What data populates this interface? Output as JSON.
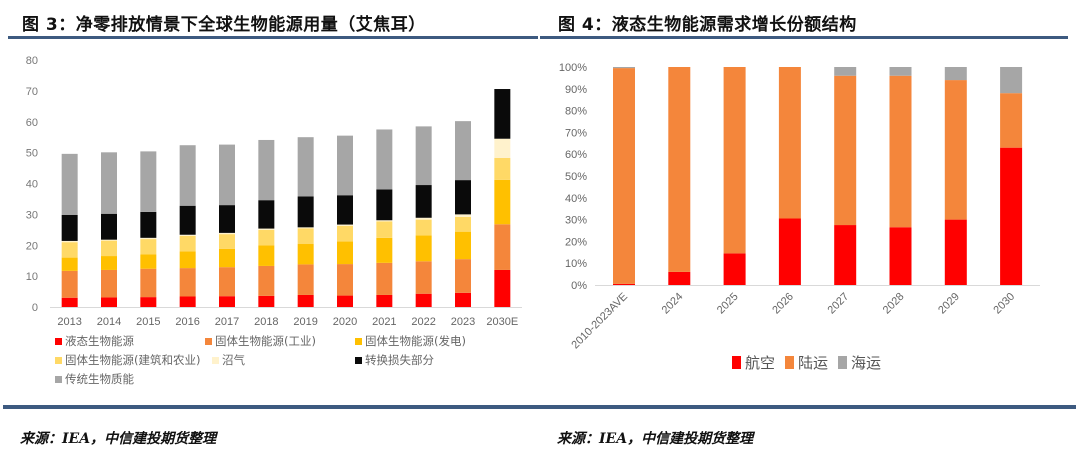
{
  "figure3": {
    "title": "图 3：净零排放情景下全球生物能源用量（艾焦耳）",
    "source": "来源：IEA，中信建投期货整理"
  },
  "figure4": {
    "title": "图 4：液态生物能源需求增长份额结构",
    "source": "来源：IEA，中信建投期货整理"
  },
  "chart_data": [
    {
      "type": "bar",
      "stacked": true,
      "title": "净零排放情景下全球生物能源用量（艾焦耳）",
      "xlabel": "",
      "ylabel": "艾焦耳",
      "ylim": [
        0,
        80
      ],
      "yticks": [
        0,
        10,
        20,
        30,
        40,
        50,
        60,
        70,
        80
      ],
      "grid": false,
      "legend_position": "bottom",
      "categories": [
        "2013",
        "2014",
        "2015",
        "2016",
        "2017",
        "2018",
        "2019",
        "2020",
        "2021",
        "2022",
        "2023",
        "2030E"
      ],
      "series": [
        {
          "name": "液态生物能源",
          "color": "#ff0000",
          "values": [
            3.0,
            3.1,
            3.2,
            3.4,
            3.5,
            3.6,
            3.9,
            3.7,
            3.9,
            4.3,
            4.6,
            12.0
          ]
        },
        {
          "name": "固体生物能源(工业)",
          "color": "#f4863b",
          "values": [
            8.7,
            8.9,
            9.2,
            9.2,
            9.4,
            9.7,
            9.9,
            10.2,
            10.4,
            10.5,
            10.9,
            14.8
          ]
        },
        {
          "name": "固体生物能源(发电)",
          "color": "#ffc000",
          "values": [
            4.3,
            4.5,
            4.6,
            5.4,
            5.9,
            6.7,
            6.6,
            7.3,
            8.1,
            8.4,
            8.9,
            14.4
          ]
        },
        {
          "name": "固体生物能源(建筑和农业)",
          "color": "#ffd966",
          "values": [
            5.0,
            5.0,
            5.0,
            5.0,
            4.8,
            5.0,
            5.1,
            5.1,
            5.3,
            5.1,
            4.8,
            7.1
          ]
        },
        {
          "name": "沼气",
          "color": "#fff2cc",
          "values": [
            0.4,
            0.3,
            0.4,
            0.4,
            0.4,
            0.4,
            0.3,
            0.4,
            0.4,
            0.6,
            0.8,
            6.2
          ]
        },
        {
          "name": "转换损失部分",
          "color": "#0a0a0a",
          "values": [
            8.4,
            8.4,
            8.4,
            9.4,
            9.0,
            9.2,
            10.0,
            9.5,
            10.0,
            10.6,
            11.1,
            16.1
          ]
        },
        {
          "name": "传统生物质能",
          "color": "#a6a6a6",
          "values": [
            19.8,
            19.9,
            19.6,
            19.6,
            19.6,
            19.5,
            19.2,
            19.3,
            19.4,
            19.0,
            19.1,
            0
          ]
        }
      ]
    },
    {
      "type": "bar",
      "stacked": true,
      "percent": true,
      "title": "液态生物能源需求增长份额结构",
      "xlabel": "",
      "ylabel": "",
      "ylim": [
        0,
        100
      ],
      "yticks": [
        "0%",
        "10%",
        "20%",
        "30%",
        "40%",
        "50%",
        "60%",
        "70%",
        "80%",
        "90%",
        "100%"
      ],
      "grid": false,
      "legend_position": "bottom",
      "categories": [
        "2010-2023AVE",
        "2024",
        "2025",
        "2026",
        "2027",
        "2028",
        "2029",
        "2030"
      ],
      "series": [
        {
          "name": "航空",
          "color": "#ff0000",
          "values": [
            0.5,
            6,
            14.5,
            30.5,
            27.5,
            26.5,
            30,
            63
          ]
        },
        {
          "name": "陆运",
          "color": "#f4863b",
          "values": [
            99,
            94,
            85.5,
            69.5,
            68.5,
            69.5,
            64,
            25
          ]
        },
        {
          "name": "海运",
          "color": "#a6a6a6",
          "values": [
            0.5,
            0,
            0,
            0,
            4,
            4,
            6,
            12
          ]
        }
      ]
    }
  ]
}
